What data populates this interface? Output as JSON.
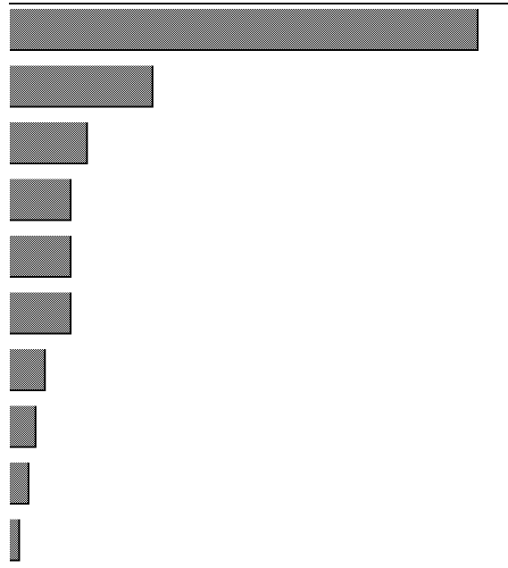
{
  "chart_data": {
    "type": "bar",
    "orientation": "horizontal",
    "categories": [
      "",
      "",
      "",
      "",
      "",
      "",
      "",
      "",
      "",
      ""
    ],
    "values": [
      100,
      30.5,
      16.5,
      13,
      13,
      13,
      7.5,
      5.5,
      4,
      2
    ],
    "xlim": [
      0,
      100
    ],
    "title": "",
    "xlabel": "",
    "ylabel": "",
    "grid": false,
    "legend": "none",
    "bar_fill_color": "#8a8a8a",
    "bar_edge_color": "#000000"
  }
}
